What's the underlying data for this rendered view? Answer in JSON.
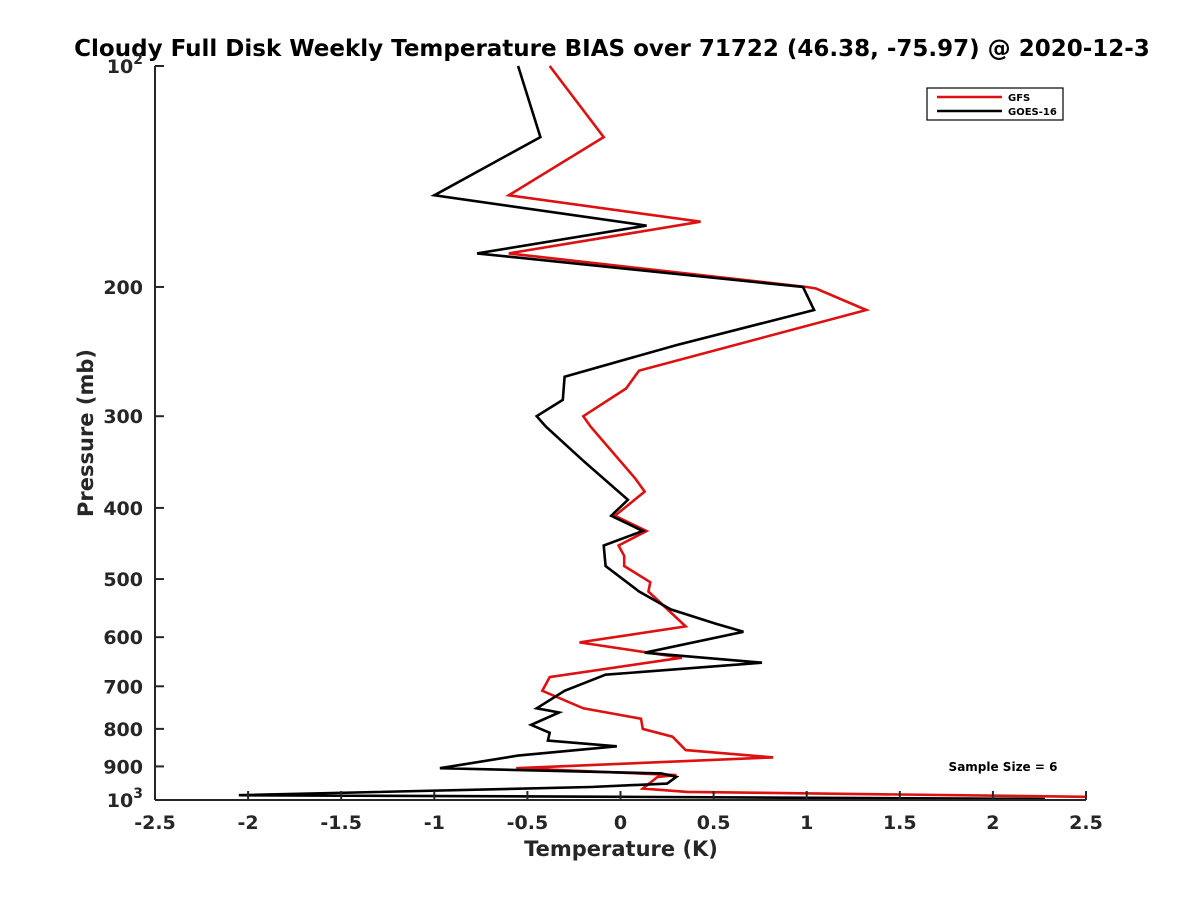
{
  "chart_data": {
    "type": "line",
    "title": "Cloudy Full Disk Weekly Temperature BIAS over 71722 (46.38, -75.97) @ 2020-12-3",
    "xlabel": "Temperature (K)",
    "ylabel": "Pressure (mb)",
    "xlim": [
      -2.5,
      2.5
    ],
    "ylim": [
      1000,
      100
    ],
    "y_scale": "log",
    "y_reversed": true,
    "grid": false,
    "legend_position": "top-right",
    "x_ticks": [
      {
        "value": -2.5,
        "label": "-2.5"
      },
      {
        "value": -2,
        "label": "-2"
      },
      {
        "value": -1.5,
        "label": "-1.5"
      },
      {
        "value": -1,
        "label": "-1"
      },
      {
        "value": -0.5,
        "label": "-0.5"
      },
      {
        "value": 0,
        "label": "0"
      },
      {
        "value": 0.5,
        "label": "0.5"
      },
      {
        "value": 1,
        "label": "1"
      },
      {
        "value": 1.5,
        "label": "1.5"
      },
      {
        "value": 2,
        "label": "2"
      },
      {
        "value": 2.5,
        "label": "2.5"
      }
    ],
    "y_ticks": [
      {
        "value": 100,
        "base": "10",
        "exp": "2"
      },
      {
        "value": 200,
        "label": "200"
      },
      {
        "value": 300,
        "label": "300"
      },
      {
        "value": 400,
        "label": "400"
      },
      {
        "value": 500,
        "label": "500"
      },
      {
        "value": 600,
        "label": "600"
      },
      {
        "value": 700,
        "label": "700"
      },
      {
        "value": 800,
        "label": "800"
      },
      {
        "value": 900,
        "label": "900"
      },
      {
        "value": 1000,
        "base": "10",
        "exp": "3"
      }
    ],
    "series": [
      {
        "name": "GFS",
        "color": "#dd1111",
        "points": [
          {
            "x": -0.38,
            "y": 100
          },
          {
            "x": -0.09,
            "y": 125
          },
          {
            "x": -0.6,
            "y": 150
          },
          {
            "x": 0.43,
            "y": 163
          },
          {
            "x": -0.6,
            "y": 180
          },
          {
            "x": 1.0,
            "y": 200
          },
          {
            "x": 1.05,
            "y": 201
          },
          {
            "x": 1.32,
            "y": 215
          },
          {
            "x": 0.1,
            "y": 260
          },
          {
            "x": 0.03,
            "y": 275
          },
          {
            "x": -0.2,
            "y": 300
          },
          {
            "x": -0.16,
            "y": 310
          },
          {
            "x": 0.08,
            "y": 365
          },
          {
            "x": 0.13,
            "y": 380
          },
          {
            "x": -0.03,
            "y": 410
          },
          {
            "x": 0.14,
            "y": 430
          },
          {
            "x": -0.01,
            "y": 450
          },
          {
            "x": 0.02,
            "y": 465
          },
          {
            "x": 0.02,
            "y": 480
          },
          {
            "x": 0.16,
            "y": 505
          },
          {
            "x": 0.15,
            "y": 520
          },
          {
            "x": 0.35,
            "y": 580
          },
          {
            "x": -0.22,
            "y": 610
          },
          {
            "x": 0.33,
            "y": 640
          },
          {
            "x": -0.38,
            "y": 680
          },
          {
            "x": -0.42,
            "y": 710
          },
          {
            "x": -0.2,
            "y": 750
          },
          {
            "x": 0.11,
            "y": 775
          },
          {
            "x": 0.12,
            "y": 800
          },
          {
            "x": 0.28,
            "y": 820
          },
          {
            "x": 0.35,
            "y": 855
          },
          {
            "x": 0.82,
            "y": 875
          },
          {
            "x": -0.56,
            "y": 905
          },
          {
            "x": 0.3,
            "y": 925
          },
          {
            "x": 0.2,
            "y": 930
          },
          {
            "x": 0.12,
            "y": 965
          },
          {
            "x": 0.36,
            "y": 975
          },
          {
            "x": 2.5,
            "y": 990
          }
        ]
      },
      {
        "name": "GOES-16",
        "color": "#000000",
        "points": [
          {
            "x": -0.55,
            "y": 100
          },
          {
            "x": -0.43,
            "y": 125
          },
          {
            "x": -1.0,
            "y": 150
          },
          {
            "x": 0.14,
            "y": 165
          },
          {
            "x": -0.77,
            "y": 180
          },
          {
            "x": 0.98,
            "y": 200
          },
          {
            "x": 1.04,
            "y": 215
          },
          {
            "x": 0.3,
            "y": 240
          },
          {
            "x": -0.3,
            "y": 265
          },
          {
            "x": -0.31,
            "y": 285
          },
          {
            "x": -0.45,
            "y": 300
          },
          {
            "x": -0.4,
            "y": 310
          },
          {
            "x": -0.2,
            "y": 345
          },
          {
            "x": 0.04,
            "y": 390
          },
          {
            "x": -0.05,
            "y": 410
          },
          {
            "x": 0.12,
            "y": 430
          },
          {
            "x": -0.09,
            "y": 450
          },
          {
            "x": -0.08,
            "y": 480
          },
          {
            "x": 0.1,
            "y": 520
          },
          {
            "x": 0.27,
            "y": 550
          },
          {
            "x": 0.51,
            "y": 575
          },
          {
            "x": 0.66,
            "y": 590
          },
          {
            "x": 0.13,
            "y": 630
          },
          {
            "x": 0.76,
            "y": 650
          },
          {
            "x": -0.08,
            "y": 675
          },
          {
            "x": -0.3,
            "y": 710
          },
          {
            "x": -0.45,
            "y": 750
          },
          {
            "x": -0.33,
            "y": 760
          },
          {
            "x": -0.48,
            "y": 790
          },
          {
            "x": -0.38,
            "y": 810
          },
          {
            "x": -0.39,
            "y": 830
          },
          {
            "x": -0.02,
            "y": 845
          },
          {
            "x": -0.55,
            "y": 870
          },
          {
            "x": -0.97,
            "y": 905
          },
          {
            "x": 0.22,
            "y": 920
          },
          {
            "x": 0.3,
            "y": 930
          },
          {
            "x": 0.25,
            "y": 950
          },
          {
            "x": -0.16,
            "y": 960
          },
          {
            "x": -2.05,
            "y": 985
          },
          {
            "x": 0.0,
            "y": 990
          },
          {
            "x": 2.28,
            "y": 997
          }
        ]
      }
    ],
    "annotation": "Sample Size = 6"
  }
}
